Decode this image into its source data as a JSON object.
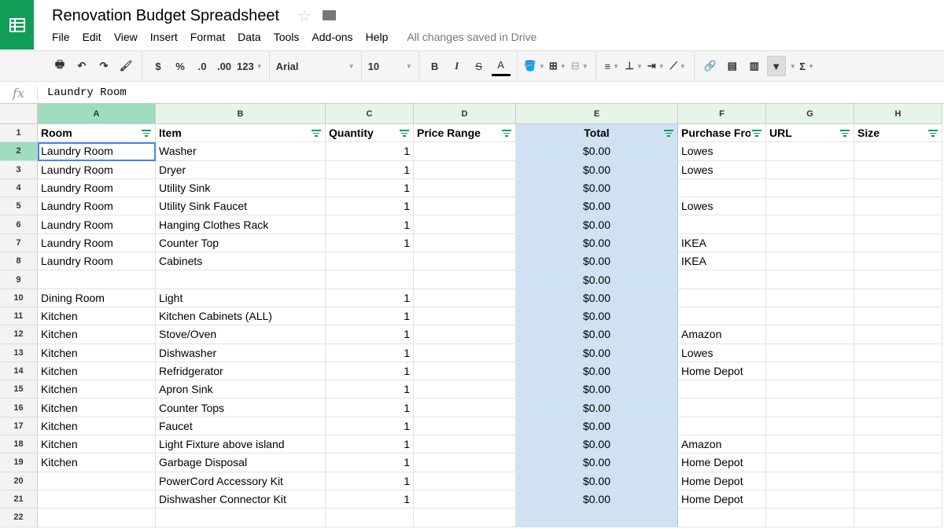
{
  "app": {
    "title": "Renovation Budget Spreadsheet",
    "status": "All changes saved in Drive"
  },
  "menu": [
    "File",
    "Edit",
    "View",
    "Insert",
    "Format",
    "Data",
    "Tools",
    "Add-ons",
    "Help"
  ],
  "toolbar": {
    "currency": "$",
    "percent": "%",
    "dec_less": ".0",
    "dec_more": ".00",
    "format": "123",
    "font": "Arial",
    "size": "10",
    "bold": "B",
    "italic": "I",
    "strike": "S",
    "textcolor": "A",
    "sum": "Σ"
  },
  "formula": {
    "label": "fx",
    "value": "Laundry Room"
  },
  "colors": {
    "accent": "#0f9d58",
    "selected_col": "#cfe2f3",
    "selection": "#4285f4"
  },
  "columns": [
    "A",
    "B",
    "C",
    "D",
    "E",
    "F",
    "G",
    "H"
  ],
  "headers": [
    "Room",
    "Item",
    "Quantity",
    "Price Range",
    "Total",
    "Purchase From",
    "URL",
    "Size"
  ],
  "rows": [
    [
      "Laundry Room",
      "Washer",
      "1",
      "",
      "$0.00",
      "Lowes",
      "",
      ""
    ],
    [
      "Laundry Room",
      "Dryer",
      "1",
      "",
      "$0.00",
      "Lowes",
      "",
      ""
    ],
    [
      "Laundry Room",
      "Utility Sink",
      "1",
      "",
      "$0.00",
      "",
      "",
      ""
    ],
    [
      "Laundry Room",
      "Utility Sink Faucet",
      "1",
      "",
      "$0.00",
      "Lowes",
      "",
      ""
    ],
    [
      "Laundry Room",
      "Hanging Clothes Rack",
      "1",
      "",
      "$0.00",
      "",
      "",
      ""
    ],
    [
      "Laundry Room",
      "Counter Top",
      "1",
      "",
      "$0.00",
      "IKEA",
      "",
      ""
    ],
    [
      "Laundry Room",
      "Cabinets",
      "",
      "",
      "$0.00",
      "IKEA",
      "",
      ""
    ],
    [
      "",
      "",
      "",
      "",
      "$0.00",
      "",
      "",
      ""
    ],
    [
      "Dining Room",
      "Light",
      "1",
      "",
      "$0.00",
      "",
      "",
      ""
    ],
    [
      "Kitchen",
      "Kitchen Cabinets (ALL)",
      "1",
      "",
      "$0.00",
      "",
      "",
      ""
    ],
    [
      "Kitchen",
      "Stove/Oven",
      "1",
      "",
      "$0.00",
      "Amazon",
      "",
      ""
    ],
    [
      "Kitchen",
      "Dishwasher",
      "1",
      "",
      "$0.00",
      "Lowes",
      "",
      ""
    ],
    [
      "Kitchen",
      "Refridgerator",
      "1",
      "",
      "$0.00",
      "Home Depot",
      "",
      ""
    ],
    [
      "Kitchen",
      "Apron Sink",
      "1",
      "",
      "$0.00",
      "",
      "",
      ""
    ],
    [
      "Kitchen",
      "Counter Tops",
      "1",
      "",
      "$0.00",
      "",
      "",
      ""
    ],
    [
      "Kitchen",
      "Faucet",
      "1",
      "",
      "$0.00",
      "",
      "",
      ""
    ],
    [
      "Kitchen",
      "Light Fixture above island",
      "1",
      "",
      "$0.00",
      "Amazon",
      "",
      ""
    ],
    [
      "Kitchen",
      "Garbage Disposal",
      "1",
      "",
      "$0.00",
      "Home Depot",
      "",
      ""
    ],
    [
      "",
      "PowerCord Accessory Kit",
      "1",
      "",
      "$0.00",
      "Home Depot",
      "",
      ""
    ],
    [
      "",
      "Dishwasher Connector Kit",
      "1",
      "",
      "$0.00",
      "Home Depot",
      "",
      ""
    ],
    [
      "",
      "",
      "",
      "",
      "",
      "",
      "",
      ""
    ]
  ]
}
